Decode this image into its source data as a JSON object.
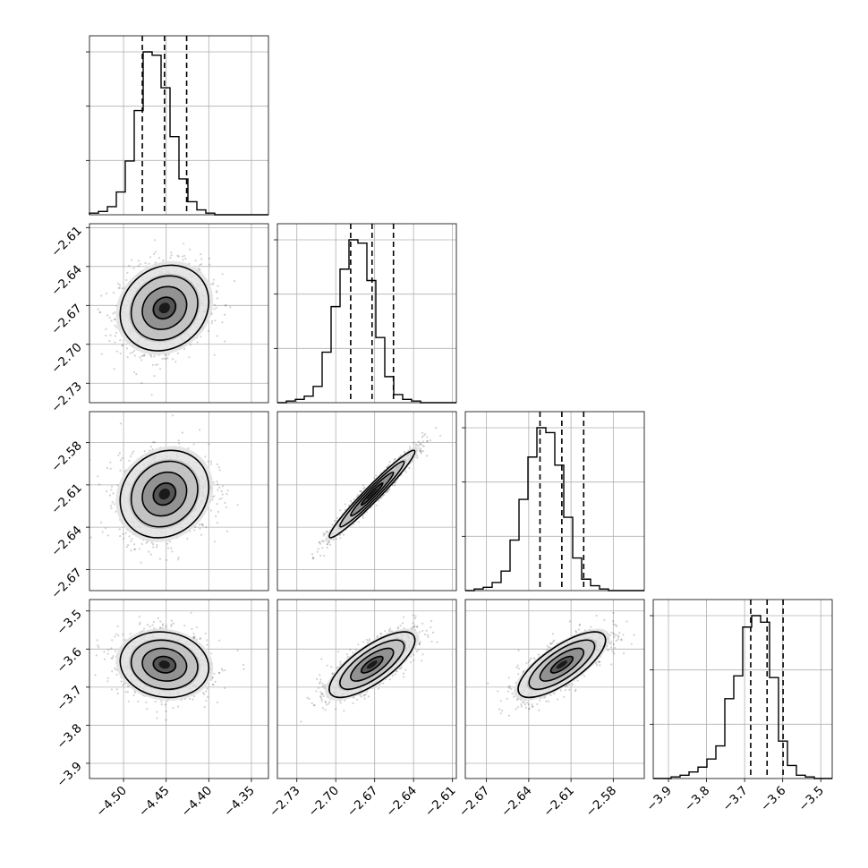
{
  "chart_data": {
    "type": "corner",
    "grid": true,
    "params": [
      {
        "range": [
          -4.54,
          -4.33
        ],
        "ticks": [
          -4.5,
          -4.45,
          -4.4,
          -4.35
        ],
        "tick_labels": [
          "−4.50",
          "−4.45",
          "−4.40",
          "−4.35"
        ],
        "mean": -4.452,
        "std": 0.026,
        "quantiles": [
          -4.478,
          -4.452,
          -4.426
        ]
      },
      {
        "range": [
          -2.745,
          -2.607
        ],
        "ticks": [
          -2.73,
          -2.7,
          -2.67,
          -2.64,
          -2.61
        ],
        "tick_labels": [
          "−2.73",
          "−2.70",
          "−2.67",
          "−2.64",
          "−2.61"
        ],
        "mean": -2.672,
        "std": 0.0165,
        "quantiles": [
          -2.6885,
          -2.672,
          -2.6555
        ]
      },
      {
        "range": [
          -2.685,
          -2.558
        ],
        "ticks": [
          -2.67,
          -2.64,
          -2.61,
          -2.58
        ],
        "tick_labels": [
          "−2.67",
          "−2.64",
          "−2.61",
          "−2.58"
        ],
        "mean": -2.6165,
        "std": 0.0155,
        "quantiles": [
          -2.632,
          -2.6165,
          -2.601
        ]
      },
      {
        "range": [
          -3.94,
          -3.47
        ],
        "ticks": [
          -3.9,
          -3.8,
          -3.7,
          -3.6,
          -3.5
        ],
        "tick_labels": [
          "−3.9",
          "−3.8",
          "−3.7",
          "−3.6",
          "−3.5"
        ],
        "mean": -3.641,
        "std": 0.043,
        "quantiles": [
          -3.684,
          -3.641,
          -3.599
        ]
      }
    ],
    "correlations": [
      {
        "pair": [
          0,
          1
        ],
        "rho": 0.15
      },
      {
        "pair": [
          0,
          2
        ],
        "rho": 0.15
      },
      {
        "pair": [
          1,
          2
        ],
        "rho": 0.97
      },
      {
        "pair": [
          0,
          3
        ],
        "rho": -0.1
      },
      {
        "pair": [
          1,
          3
        ],
        "rho": 0.75
      },
      {
        "pair": [
          2,
          3
        ],
        "rho": 0.75
      }
    ],
    "histograms": [
      [
        1,
        2,
        5,
        14,
        33,
        64,
        100,
        98,
        78,
        48,
        22,
        8,
        3,
        1,
        0,
        0,
        0,
        0,
        0,
        0
      ],
      [
        0,
        1,
        2,
        4,
        10,
        31,
        59,
        82,
        100,
        98,
        75,
        40,
        16,
        5,
        2,
        1,
        0,
        0,
        0,
        0
      ],
      [
        0,
        1,
        2,
        5,
        12,
        31,
        56,
        82,
        100,
        97,
        77,
        45,
        20,
        7,
        3,
        1,
        0,
        0,
        0,
        0
      ],
      [
        0,
        0,
        1,
        2,
        4,
        7,
        12,
        20,
        49,
        63,
        93,
        100,
        96,
        62,
        23,
        8,
        2,
        1,
        0,
        0
      ]
    ],
    "contour_levels": [
      0.118,
      0.393,
      0.675,
      0.864
    ]
  }
}
